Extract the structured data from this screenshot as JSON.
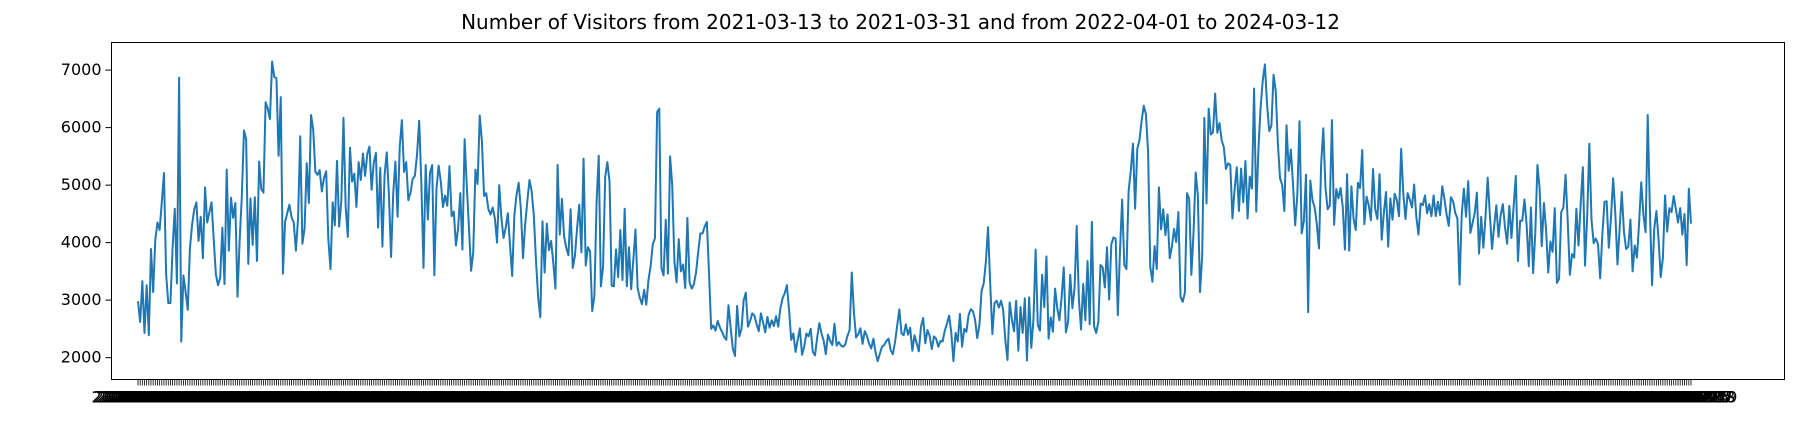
{
  "chart_data": {
    "type": "line",
    "title": "Number of Visitors from 2021-03-13 to 2021-03-31 and from 2022-04-01 to 2024-03-12",
    "xlabel": "",
    "ylabel": "",
    "grid": false,
    "ylim": [
      1620,
      7480
    ],
    "yticks": [
      2000,
      3000,
      4000,
      5000,
      6000,
      7000
    ],
    "line_color": "#1f77b4",
    "x_start_first": "2021-03-13",
    "x_end_first": "2021-03-31",
    "x_start_second": "2022-04-01",
    "x_end_second": "2024-03-12",
    "x_tick_label_first": "2021-03-13",
    "x_tick_label_last": "2024-03-12",
    "series": [
      {
        "values": [
          2980,
          2620,
          3330,
          2430,
          3260,
          2390,
          3890,
          3140,
          4050,
          4350,
          4220,
          4700,
          5210,
          3450,
          2950,
          2950,
          3920,
          4590,
          3290,
          6870,
          2280,
          3430,
          3150,
          2830,
          3900,
          4310,
          4580,
          4700,
          4030,
          4450,
          3730,
          4960,
          4350,
          4530,
          4700,
          4060,
          3450,
          3260,
          3390,
          4260,
          3280,
          5270,
          3860,
          4780,
          4430,
          4690,
          3060,
          4040,
          4810,
          5950,
          5800,
          3630,
          4770,
          3960,
          4790,
          3680,
          5410,
          4930,
          4870,
          6440,
          6330,
          6150,
          7150,
          6880,
          6860,
          5510,
          6530,
          3460,
          4360,
          4510,
          4660,
          4440,
          4350,
          3860,
          4420,
          5850,
          3980,
          4240,
          5380,
          4690,
          6220,
          5970,
          5230,
          5180,
          5260,
          4890,
          5130,
          5240,
          4060,
          3540,
          4700,
          4300,
          5420,
          4280,
          4720,
          6170,
          4630,
          4100,
          5650,
          5060,
          5200,
          4620,
          5400,
          5090,
          5550,
          5160,
          5540,
          5670,
          4920,
          5390,
          5560,
          4260,
          5300,
          3930,
          5170,
          5570,
          4840,
          3750,
          4860,
          5410,
          4450,
          5660,
          6130,
          5230,
          5400,
          4740,
          4870,
          5110,
          5160,
          5530,
          6120,
          5040,
          3560,
          5350,
          4400,
          5210,
          5350,
          3430,
          4940,
          5340,
          5060,
          4620,
          4820,
          4640,
          5330,
          4460,
          4540,
          3950,
          4250,
          4860,
          3880,
          5800,
          5000,
          4270,
          3510,
          3840,
          5270,
          5020,
          6210,
          5760,
          4810,
          4860,
          4580,
          4490,
          4610,
          4420,
          4000,
          5000,
          4430,
          4080,
          4260,
          4510,
          3950,
          3420,
          4470,
          4830,
          5040,
          4590,
          3730,
          4320,
          4720,
          5090,
          4890,
          4470,
          3690,
          3050,
          2700,
          4370,
          3480,
          4330,
          3870,
          4030,
          3650,
          3200,
          5350,
          4140,
          4760,
          4110,
          3910,
          3780,
          4580,
          3560,
          3770,
          4250,
          4660,
          3830,
          5460,
          3600,
          3920,
          3850,
          2810,
          3070,
          4690,
          5510,
          3240,
          3570,
          5140,
          5400,
          5070,
          3250,
          3240,
          3880,
          3400,
          4220,
          3350,
          4590,
          3240,
          3920,
          3190,
          3700,
          4230,
          3210,
          3040,
          2930,
          3180,
          2920,
          3350,
          3590,
          3970,
          4080,
          6270,
          6330,
          3560,
          3430,
          4400,
          3460,
          5500,
          4990,
          3670,
          3310,
          4060,
          3500,
          3620,
          3210,
          4430,
          3310,
          3200,
          3280,
          3480,
          3840,
          4160,
          4160,
          4280,
          4360,
          3470,
          2500,
          2560,
          2470,
          2640,
          2530,
          2450,
          2360,
          2310,
          2910,
          2520,
          2160,
          2030,
          2900,
          2370,
          2500,
          2990,
          3130,
          2540,
          2640,
          2770,
          2730,
          2580,
          2460,
          2770,
          2610,
          2440,
          2710,
          2520,
          2650,
          2550,
          2720,
          2540,
          2860,
          3030,
          3120,
          3260,
          2830,
          2310,
          2420,
          2100,
          2310,
          2510,
          2050,
          2190,
          2420,
          2370,
          2500,
          2100,
          2040,
          2350,
          2600,
          2420,
          2300,
          2060,
          2400,
          2290,
          2220,
          2590,
          2210,
          2270,
          2210,
          2190,
          2230,
          2380,
          2480,
          3480,
          2780,
          2350,
          2410,
          2510,
          2240,
          2460,
          2380,
          2240,
          2160,
          2330,
          2090,
          1940,
          2070,
          2190,
          2220,
          2290,
          2330,
          2130,
          2060,
          2270,
          2560,
          2840,
          2420,
          2390,
          2580,
          2400,
          2520,
          2120,
          2390,
          2250,
          2110,
          2540,
          2690,
          2250,
          2480,
          2380,
          2150,
          2370,
          2330,
          2190,
          2290,
          2280,
          2470,
          2590,
          2730,
          2440,
          1940,
          2430,
          2280,
          2760,
          2190,
          2500,
          2450,
          2740,
          2840,
          2810,
          2660,
          2340,
          2560,
          3160,
          3290,
          3670,
          4270,
          3290,
          2410,
          2950,
          2990,
          2870,
          2990,
          2830,
          2300,
          1960,
          2960,
          2670,
          2460,
          2990,
          2120,
          2880,
          2430,
          3030,
          1950,
          3050,
          2170,
          2670,
          3880,
          2570,
          2470,
          3440,
          2880,
          3760,
          2330,
          2700,
          2450,
          3200,
          2860,
          2650,
          3040,
          3570,
          2440,
          2620,
          3440,
          2860,
          3210,
          4290,
          3020,
          2490,
          3280,
          2650,
          3680,
          2580,
          4360,
          2550,
          2430,
          2620,
          3610,
          3570,
          3220,
          3920,
          3010,
          3970,
          4090,
          4070,
          2740,
          3850,
          4750,
          3610,
          3540,
          4900,
          5250,
          5720,
          4590,
          5630,
          5780,
          6120,
          6380,
          6230,
          5580,
          3580,
          3320,
          3940,
          3540,
          4960,
          4230,
          4580,
          4130,
          4490,
          3730,
          3930,
          4240,
          4010,
          4530,
          3060,
          2970,
          3130,
          4860,
          4760,
          3440,
          4170,
          5220,
          4820,
          3140,
          3760,
          6170,
          4680,
          6330,
          5880,
          5920,
          6590,
          5910,
          6080,
          5780,
          5660,
          5280,
          5380,
          5350,
          4420,
          4930,
          5310,
          4550,
          5290,
          4700,
          5420,
          4420,
          5150,
          4940,
          6680,
          4540,
          5620,
          6340,
          6820,
          7100,
          6400,
          5940,
          6030,
          6920,
          6640,
          5720,
          5120,
          5000,
          4550,
          6040,
          5250,
          5620,
          5010,
          4300,
          4840,
          6110,
          4160,
          4370,
          5180,
          2790,
          5080,
          4740,
          4610,
          4320,
          3900,
          5360,
          5990,
          4960,
          4580,
          4640,
          6130,
          4310,
          4930,
          4770,
          4950,
          4620,
          3880,
          5190,
          3860,
          4980,
          4410,
          4220,
          5040,
          4950,
          5610,
          4320,
          4800,
          4650,
          4390,
          5280,
          4580,
          4410,
          5190,
          4050,
          4520,
          4880,
          3930,
          4770,
          4400,
          4850,
          4740,
          4460,
          5630,
          4850,
          4410,
          4860,
          4750,
          4610,
          5010,
          4450,
          4140,
          4680,
          4650,
          4820,
          4510,
          4670,
          4460,
          4820,
          4460,
          4710,
          4480,
          4980,
          4760,
          4490,
          4290,
          4790,
          4720,
          4520,
          4420,
          3270,
          4490,
          4940,
          4450,
          5070,
          4170,
          4340,
          4510,
          4870,
          3810,
          4450,
          3910,
          4450,
          5130,
          4490,
          3890,
          4290,
          4650,
          4100,
          4480,
          4670,
          4270,
          3980,
          4640,
          4080,
          4630,
          5160,
          3680,
          4380,
          4380,
          4750,
          4310,
          3590,
          4610,
          3470,
          4160,
          5350,
          4950,
          3940,
          4690,
          4220,
          3480,
          4020,
          3840,
          4600,
          3300,
          3370,
          4530,
          4610,
          5180,
          4370,
          3440,
          3800,
          3740,
          4590,
          3950,
          4670,
          5310,
          3600,
          4440,
          5720,
          4400,
          3990,
          4070,
          3980,
          3380,
          4130,
          4710,
          4720,
          3910,
          4430,
          5120,
          4520,
          3620,
          4240,
          4880,
          4190,
          3890,
          3930,
          4400,
          3500,
          3950,
          3740,
          4340,
          5050,
          4490,
          4180,
          6220,
          4560,
          3260,
          4240,
          4550,
          4060,
          3400,
          3730,
          4820,
          4190,
          4600,
          4530,
          4810,
          4580,
          4350,
          4600,
          4140,
          4500,
          3610,
          4940,
          4330
        ]
      }
    ]
  }
}
